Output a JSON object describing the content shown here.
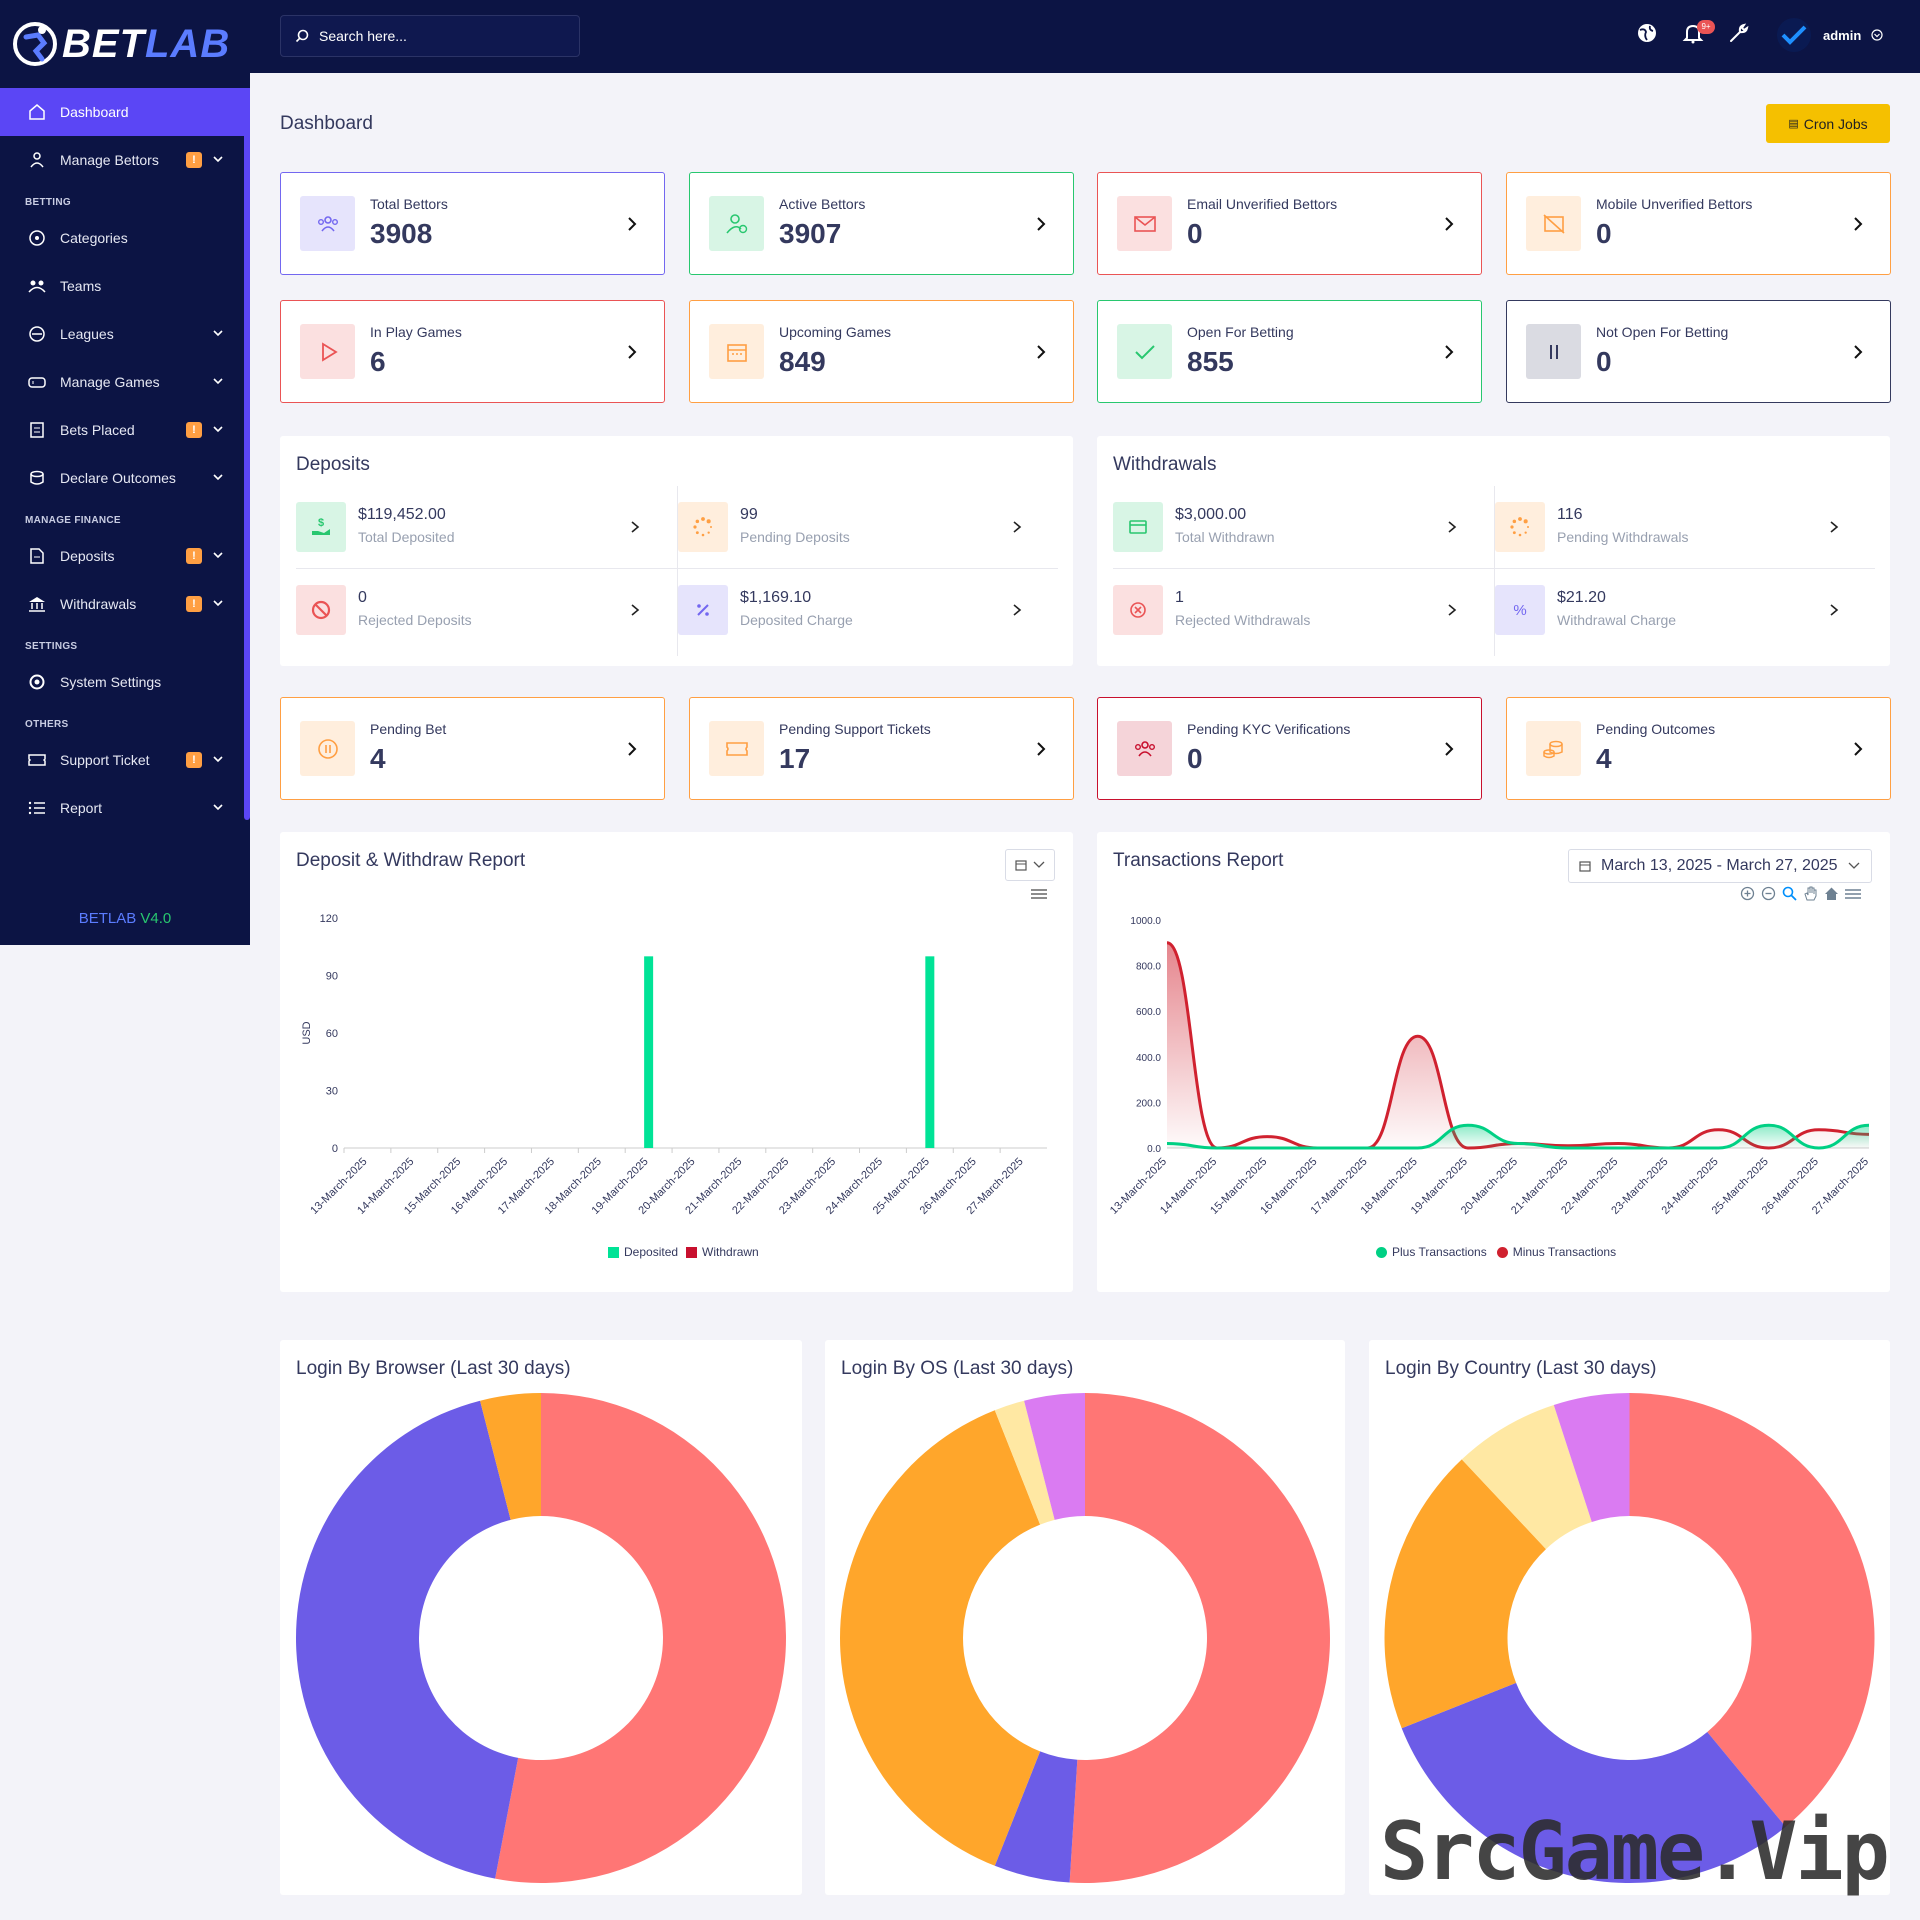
{
  "brand": {
    "part1": "BET",
    "part2": "LAB"
  },
  "search": {
    "placeholder": "Search here..."
  },
  "topbar": {
    "notifications_count": "9+",
    "user": "admin"
  },
  "sidebar": {
    "items": [
      {
        "label": "Dashboard",
        "icon": "home-icon",
        "active": true
      },
      {
        "label": "Manage Bettors",
        "icon": "users-icon",
        "badge": "!",
        "has_chevron": true
      }
    ],
    "sections": [
      {
        "title": "BETTING",
        "items": [
          {
            "label": "Categories",
            "icon": "categories-icon"
          },
          {
            "label": "Teams",
            "icon": "teams-icon"
          },
          {
            "label": "Leagues",
            "icon": "leagues-icon",
            "has_chevron": true
          },
          {
            "label": "Manage Games",
            "icon": "gamepad-icon",
            "has_chevron": true
          },
          {
            "label": "Bets Placed",
            "icon": "clipboard-icon",
            "badge": "!",
            "has_chevron": true
          },
          {
            "label": "Declare Outcomes",
            "icon": "coins-icon",
            "has_chevron": true
          }
        ]
      },
      {
        "title": "MANAGE FINANCE",
        "items": [
          {
            "label": "Deposits",
            "icon": "file-dollar-icon",
            "badge": "!",
            "has_chevron": true
          },
          {
            "label": "Withdrawals",
            "icon": "bank-icon",
            "badge": "!",
            "has_chevron": true
          }
        ]
      },
      {
        "title": "SETTINGS",
        "items": [
          {
            "label": "System Settings",
            "icon": "gear-icon"
          }
        ]
      },
      {
        "title": "OTHERS",
        "items": [
          {
            "label": "Support Ticket",
            "icon": "ticket-icon",
            "badge": "!",
            "has_chevron": true
          },
          {
            "label": "Report",
            "icon": "list-icon",
            "has_chevron": true
          }
        ]
      }
    ],
    "version": {
      "name": "BETLAB",
      "number": "V4.0"
    }
  },
  "page": {
    "title": "Dashboard",
    "cron_label": "Cron Jobs"
  },
  "cards_row1": [
    {
      "label": "Total Bettors",
      "value": "3908",
      "color": "#7367f0"
    },
    {
      "label": "Active Bettors",
      "value": "3907",
      "color": "#28c76f"
    },
    {
      "label": "Email Unverified Bettors",
      "value": "0",
      "color": "#ea5455"
    },
    {
      "label": "Mobile Unverified Bettors",
      "value": "0",
      "color": "#ff9f43"
    }
  ],
  "cards_row2": [
    {
      "label": "In Play Games",
      "value": "6",
      "color": "#ea5455"
    },
    {
      "label": "Upcoming Games",
      "value": "849",
      "color": "#ff9f43"
    },
    {
      "label": "Open For Betting",
      "value": "855",
      "color": "#28c76f"
    },
    {
      "label": "Not Open For Betting",
      "value": "0",
      "color": "#34395e"
    }
  ],
  "deposits": {
    "title": "Deposits",
    "stats": [
      {
        "value": "$119,452.00",
        "label": "Total Deposited"
      },
      {
        "value": "99",
        "label": "Pending Deposits"
      },
      {
        "value": "0",
        "label": "Rejected Deposits"
      },
      {
        "value": "$1,169.10",
        "label": "Deposited Charge"
      }
    ]
  },
  "withdrawals": {
    "title": "Withdrawals",
    "stats": [
      {
        "value": "$3,000.00",
        "label": "Total Withdrawn"
      },
      {
        "value": "116",
        "label": "Pending Withdrawals"
      },
      {
        "value": "1",
        "label": "Rejected Withdrawals"
      },
      {
        "value": "$21.20",
        "label": "Withdrawal Charge"
      }
    ]
  },
  "cards_row3": [
    {
      "label": "Pending Bet",
      "value": "4",
      "color": "#ff9f43"
    },
    {
      "label": "Pending Support Tickets",
      "value": "17",
      "color": "#ff9f43"
    },
    {
      "label": "Pending KYC Verifications",
      "value": "0",
      "color": "#c8102e"
    },
    {
      "label": "Pending Outcomes",
      "value": "4",
      "color": "#ff9f43"
    }
  ],
  "deposit_report": {
    "title": "Deposit & Withdraw Report"
  },
  "transactions_report": {
    "title": "Transactions Report",
    "date_range": "March 13, 2025 - March 27, 2025"
  },
  "login_browser": {
    "title": "Login By Browser (Last 30 days)"
  },
  "login_os": {
    "title": "Login By OS (Last 30 days)"
  },
  "login_country": {
    "title": "Login By Country (Last 30 days)"
  },
  "watermark": "SrcGame.Vip",
  "chart_data": [
    {
      "type": "bar",
      "title": "Deposit & Withdraw Report",
      "ylabel": "USD",
      "ylim": [
        0,
        120
      ],
      "yticks": [
        0,
        30,
        60,
        90,
        120
      ],
      "categories": [
        "13-March-2025",
        "14-March-2025",
        "15-March-2025",
        "16-March-2025",
        "17-March-2025",
        "18-March-2025",
        "19-March-2025",
        "20-March-2025",
        "21-March-2025",
        "22-March-2025",
        "23-March-2025",
        "24-March-2025",
        "25-March-2025",
        "26-March-2025",
        "27-March-2025"
      ],
      "series": [
        {
          "name": "Deposited",
          "color": "#00e396",
          "values": [
            0,
            0,
            0,
            0,
            0,
            0,
            100,
            0,
            0,
            0,
            0,
            0,
            100,
            0,
            0
          ]
        },
        {
          "name": "Withdrawn",
          "color": "#c8102e",
          "values": [
            0,
            0,
            0,
            0,
            0,
            0,
            0,
            0,
            0,
            0,
            0,
            0,
            0,
            0,
            0
          ]
        }
      ],
      "legend": "bottom"
    },
    {
      "type": "area",
      "title": "Transactions Report",
      "ylim": [
        0,
        1000
      ],
      "yticks": [
        "0.0",
        "200.0",
        "400.0",
        "600.0",
        "800.0",
        "1000.0"
      ],
      "categories": [
        "13-March-2025",
        "14-March-2025",
        "15-March-2025",
        "16-March-2025",
        "17-March-2025",
        "18-March-2025",
        "19-March-2025",
        "20-March-2025",
        "21-March-2025",
        "22-March-2025",
        "23-March-2025",
        "24-March-2025",
        "25-March-2025",
        "26-March-2025",
        "27-March-2025"
      ],
      "series": [
        {
          "name": "Plus Transactions",
          "color": "#00d084",
          "values": [
            20,
            0,
            0,
            0,
            0,
            0,
            100,
            20,
            0,
            0,
            0,
            0,
            100,
            0,
            100
          ]
        },
        {
          "name": "Minus Transactions",
          "color": "#d0212f",
          "values": [
            900,
            0,
            50,
            0,
            0,
            490,
            0,
            20,
            10,
            20,
            0,
            80,
            0,
            80,
            60
          ]
        }
      ],
      "legend": "bottom"
    },
    {
      "type": "pie",
      "title": "Login By Browser (Last 30 days)",
      "slices": [
        {
          "value": 53,
          "color": "#ff7675"
        },
        {
          "value": 43,
          "color": "#6c5ce7"
        },
        {
          "value": 4,
          "color": "#ffa62b"
        }
      ]
    },
    {
      "type": "pie",
      "title": "Login By OS (Last 30 days)",
      "slices": [
        {
          "value": 51,
          "color": "#ff7675"
        },
        {
          "value": 5,
          "color": "#6c5ce7"
        },
        {
          "value": 38,
          "color": "#ffa62b"
        },
        {
          "value": 2,
          "color": "#ffe8a3"
        },
        {
          "value": 4,
          "color": "#da7bf2"
        }
      ]
    },
    {
      "type": "pie",
      "title": "Login By Country (Last 30 days)",
      "slices": [
        {
          "value": 39,
          "color": "#ff7675"
        },
        {
          "value": 30,
          "color": "#6c5ce7"
        },
        {
          "value": 19,
          "color": "#ffa62b"
        },
        {
          "value": 7,
          "color": "#ffe8a3"
        },
        {
          "value": 5,
          "color": "#da7bf2"
        }
      ]
    }
  ]
}
